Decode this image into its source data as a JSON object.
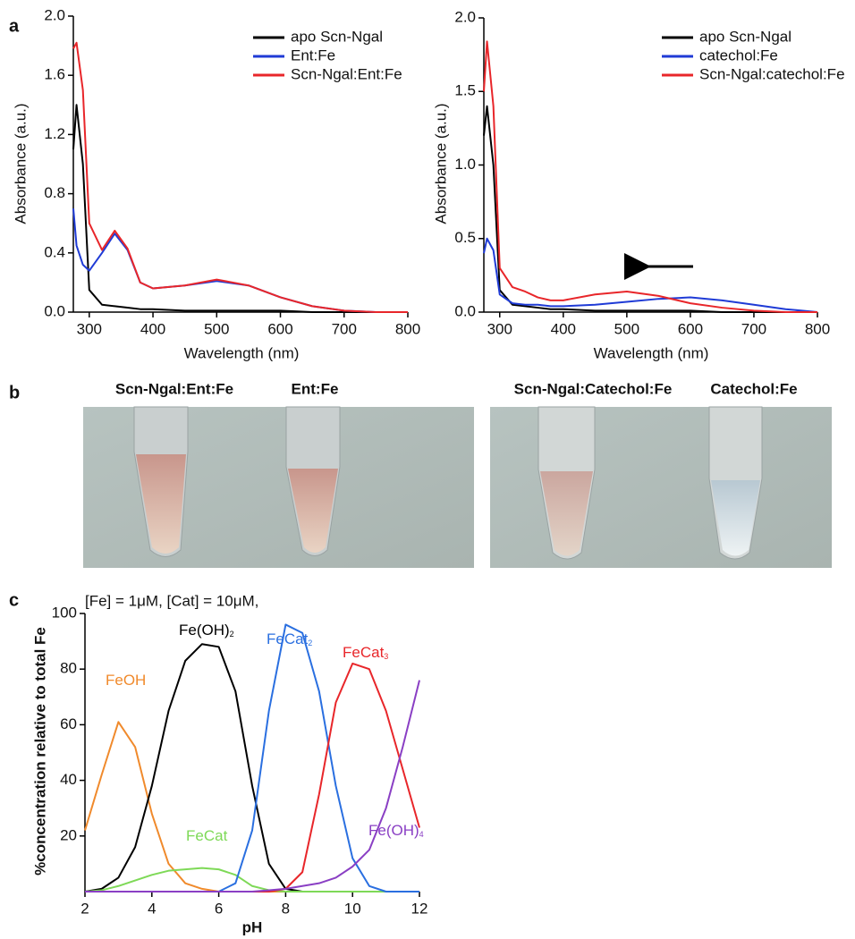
{
  "chart_data": [
    {
      "type": "line",
      "panel_label": "a",
      "xlabel": "Wavelength (nm)",
      "ylabel": "Absorbance (a.u.)",
      "x": [
        275,
        280,
        290,
        300,
        320,
        340,
        360,
        380,
        400,
        450,
        500,
        550,
        600,
        650,
        700,
        750,
        800
      ],
      "series": [
        {
          "name": "apo Scn-Ngal",
          "color": "#000000",
          "values": [
            1.1,
            1.4,
            1.0,
            0.15,
            0.05,
            0.04,
            0.03,
            0.02,
            0.02,
            0.01,
            0.01,
            0.01,
            0.01,
            0,
            0,
            0,
            0
          ]
        },
        {
          "name": "Ent:Fe",
          "color": "#1f3bd6",
          "values": [
            0.7,
            0.45,
            0.32,
            0.28,
            0.4,
            0.53,
            0.42,
            0.2,
            0.16,
            0.18,
            0.21,
            0.18,
            0.1,
            0.04,
            0.01,
            0,
            0
          ]
        },
        {
          "name": "Scn-Ngal:Ent:Fe",
          "color": "#e8262a",
          "values": [
            1.78,
            1.82,
            1.5,
            0.6,
            0.42,
            0.55,
            0.43,
            0.2,
            0.16,
            0.18,
            0.22,
            0.18,
            0.1,
            0.04,
            0.01,
            0,
            0
          ]
        }
      ],
      "xlim": [
        275,
        800
      ],
      "xticks": [
        300,
        400,
        500,
        600,
        700,
        800
      ],
      "ylim": [
        0,
        2
      ],
      "yticks": [
        {
          "value": 0,
          "label": "0.0"
        },
        0.4,
        0.8,
        1.2,
        1.6,
        {
          "value": 2,
          "label": "2.0"
        }
      ],
      "legend": "upper right"
    },
    {
      "type": "line",
      "xlabel": "Wavelength (nm)",
      "ylabel": "Absorbance (a.u.)",
      "x": [
        275,
        280,
        290,
        300,
        320,
        340,
        360,
        380,
        400,
        450,
        500,
        550,
        600,
        650,
        700,
        750,
        800
      ],
      "series": [
        {
          "name": "apo Scn-Ngal",
          "color": "#000000",
          "values": [
            1.2,
            1.4,
            1.0,
            0.15,
            0.05,
            0.04,
            0.03,
            0.02,
            0.02,
            0.01,
            0.01,
            0.01,
            0.01,
            0,
            0,
            0,
            0
          ]
        },
        {
          "name": "catechol:Fe",
          "color": "#1f3bd6",
          "values": [
            0.4,
            0.5,
            0.42,
            0.12,
            0.06,
            0.05,
            0.05,
            0.04,
            0.04,
            0.05,
            0.07,
            0.09,
            0.1,
            0.08,
            0.05,
            0.02,
            0
          ]
        },
        {
          "name": "Scn-Ngal:catechol:Fe",
          "color": "#e8262a",
          "values": [
            1.5,
            1.84,
            1.4,
            0.3,
            0.17,
            0.14,
            0.1,
            0.08,
            0.08,
            0.12,
            0.14,
            0.11,
            0.06,
            0.03,
            0.01,
            0,
            0
          ]
        }
      ],
      "xlim": [
        275,
        800
      ],
      "xticks": [
        300,
        400,
        500,
        600,
        700,
        800
      ],
      "ylim": [
        0,
        2
      ],
      "yticks": [
        {
          "value": 0,
          "label": "0.0"
        },
        0.5,
        {
          "value": 1,
          "label": "1.0"
        },
        1.5,
        {
          "value": 2,
          "label": "2.0"
        }
      ],
      "legend": "upper right"
    },
    {
      "type": "line",
      "panel_label": "c",
      "subtitle": "[Fe] = 1μM, [Cat] = 10μM,",
      "xlabel": "pH",
      "ylabel": "%concentration relative to total Fe",
      "x": [
        2,
        2.5,
        3,
        3.5,
        4,
        4.5,
        5,
        5.5,
        6,
        6.5,
        7,
        7.5,
        8,
        8.5,
        9,
        9.5,
        10,
        10.5,
        11,
        11.5,
        12
      ],
      "series": [
        {
          "name": "FeOH",
          "color": "#f08a2c",
          "values": [
            22,
            42,
            61,
            52,
            28,
            10,
            3,
            1,
            0,
            0,
            0,
            0,
            0,
            0,
            0,
            0,
            0,
            0,
            0,
            0,
            0
          ]
        },
        {
          "name": "Fe(OH)",
          "name_sub": "2",
          "color": "#000000",
          "values": [
            0,
            1,
            5,
            16,
            38,
            65,
            83,
            89,
            88,
            72,
            38,
            10,
            1,
            0,
            0,
            0,
            0,
            0,
            0,
            0,
            0
          ]
        },
        {
          "name": "FeCat",
          "color": "#7ed957",
          "values": [
            0,
            0.5,
            2,
            4,
            6,
            7.5,
            8,
            8.5,
            8,
            6,
            2,
            0.5,
            0,
            0,
            0,
            0,
            0,
            0,
            0,
            0,
            0
          ]
        },
        {
          "name": "FeCat",
          "name_sub": "2",
          "color": "#2a6fe0",
          "values": [
            0,
            0,
            0,
            0,
            0,
            0,
            0,
            0,
            0,
            3,
            22,
            65,
            96,
            93,
            72,
            38,
            12,
            2,
            0,
            0,
            0
          ]
        },
        {
          "name": "FeCat",
          "name_sub": "3",
          "color": "#e8262a",
          "values": [
            0,
            0,
            0,
            0,
            0,
            0,
            0,
            0,
            0,
            0,
            0,
            0,
            1,
            7,
            35,
            68,
            82,
            80,
            65,
            44,
            23
          ]
        },
        {
          "name": "Fe(OH)",
          "name_sub": "4",
          "color": "#8a3fc4",
          "values": [
            0,
            0,
            0,
            0,
            0,
            0,
            0,
            0,
            0,
            0,
            0,
            0.5,
            1,
            2,
            3,
            5,
            9,
            15,
            30,
            52,
            76
          ]
        }
      ],
      "xlim": [
        2,
        12
      ],
      "xticks": [
        2,
        4,
        6,
        8,
        10,
        12
      ],
      "ylim": [
        0,
        100
      ],
      "yticks": [
        20,
        40,
        60,
        80,
        100
      ]
    }
  ],
  "photos": {
    "label": "b",
    "captions": [
      "Scn-Ngal:Ent:Fe",
      "Ent:Fe",
      "Scn-Ngal:Catechol:Fe",
      "Catechol:Fe"
    ]
  }
}
